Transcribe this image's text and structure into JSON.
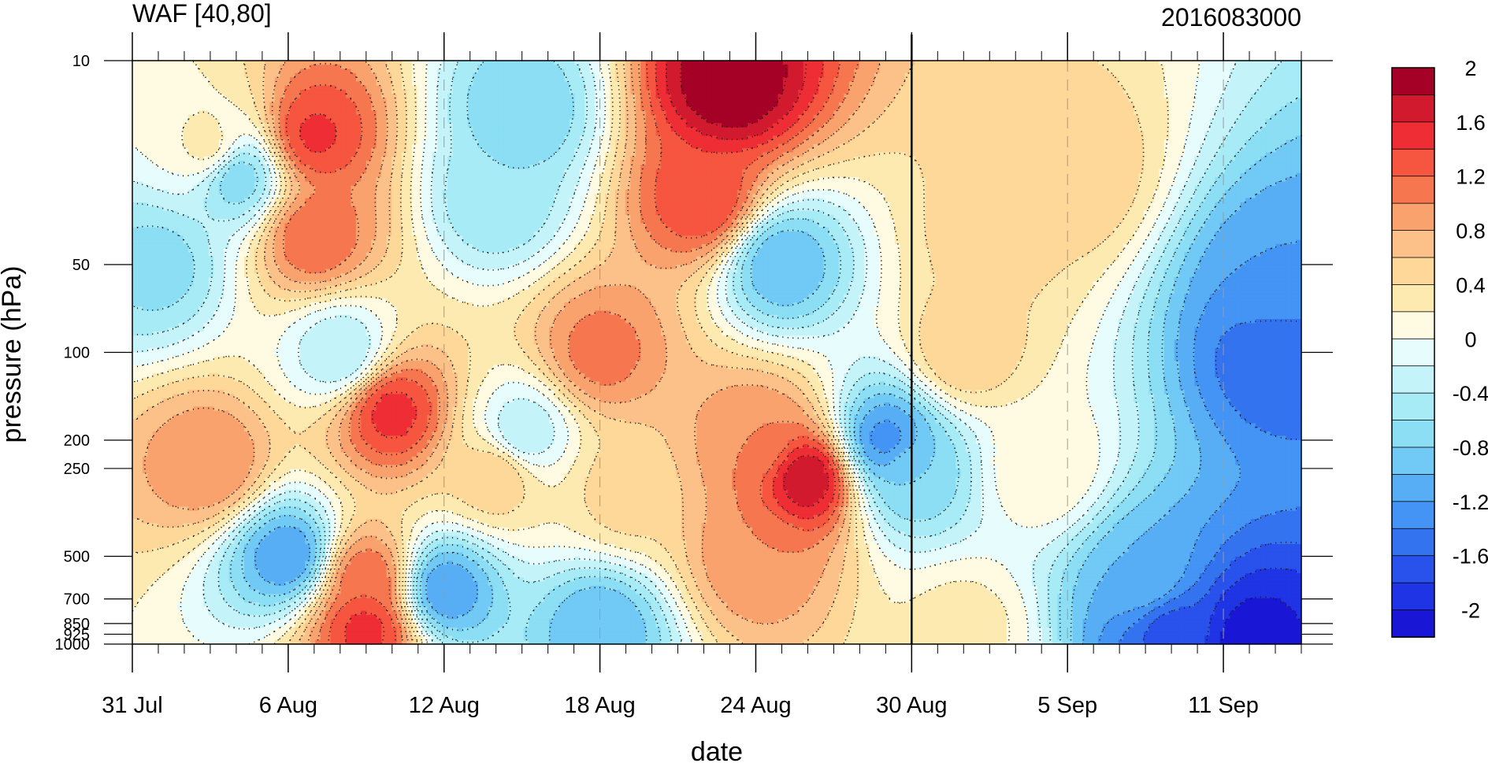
{
  "chart_data": {
    "type": "heatmap",
    "title_left": "WAF [40,80]",
    "title_right": "2016083000",
    "xlabel": "date",
    "ylabel": "pressure (hPa)",
    "x_tick_labels": [
      "31 Jul",
      "6 Aug",
      "12 Aug",
      "18 Aug",
      "24 Aug",
      "30 Aug",
      "5 Sep",
      "11 Sep"
    ],
    "x_tick_dates": [
      "2016-07-31",
      "2016-08-06",
      "2016-08-12",
      "2016-08-18",
      "2016-08-24",
      "2016-08-30",
      "2016-09-05",
      "2016-09-11"
    ],
    "x_range": [
      "2016-07-31",
      "2016-09-14"
    ],
    "dashed_reference_dates": [
      "2016-08-12",
      "2016-08-18",
      "2016-09-05",
      "2016-09-11"
    ],
    "marker_date": "2016-08-30",
    "y_log_scale": true,
    "y_reversed": true,
    "y_range": [
      1000,
      10
    ],
    "y_ticks": [
      10,
      50,
      100,
      200,
      250,
      500,
      700,
      850,
      925,
      1000
    ],
    "y_tick_labels": [
      "10",
      "50",
      "100",
      "200",
      "250",
      "500",
      "700",
      "850",
      "925",
      "1000"
    ],
    "colorbar_levels": [
      -2.2,
      -2.0,
      -1.8,
      -1.6,
      -1.4,
      -1.2,
      -1.0,
      -0.8,
      -0.6,
      -0.4,
      -0.2,
      0,
      0.2,
      0.4,
      0.6,
      0.8,
      1.0,
      1.2,
      1.4,
      1.6,
      1.8,
      2.0
    ],
    "colorbar_tick_labels": [
      "2",
      "1.6",
      "1.2",
      "0.8",
      "0.4",
      "0",
      "-0.4",
      "-0.8",
      "-1.2",
      "-1.6",
      "-2"
    ],
    "colorbar_tick_values": [
      2.0,
      1.6,
      1.2,
      0.8,
      0.4,
      0,
      -0.4,
      -0.8,
      -1.2,
      -1.6,
      -2.0
    ],
    "colorbar_colors": [
      "#a50026",
      "#d21a2e",
      "#ee2d35",
      "#f6553f",
      "#f6774f",
      "#f9a26d",
      "#fbc189",
      "#fdd899",
      "#fdeab1",
      "#fefbe2",
      "#e6fcfd",
      "#c4f4fa",
      "#a7ebf6",
      "#8bdef4",
      "#71c9f5",
      "#58aef5",
      "#4394f4",
      "#3473f0",
      "#2951ec",
      "#1f34e4",
      "#1a16d6"
    ],
    "field_features": [
      {
        "date": "2016-08-07",
        "p": 18,
        "v": 1.45
      },
      {
        "date": "2016-08-07",
        "p": 40,
        "v": 1.2
      },
      {
        "date": "2016-08-03",
        "p": 20,
        "v": 0.3
      },
      {
        "date": "2016-08-04",
        "p": 25,
        "v": -0.8
      },
      {
        "date": "2016-08-01",
        "p": 50,
        "v": -0.7
      },
      {
        "date": "2016-08-03",
        "p": 240,
        "v": 1.0
      },
      {
        "date": "2016-08-06",
        "p": 500,
        "v": -1.2
      },
      {
        "date": "2016-08-08",
        "p": 100,
        "v": -0.4
      },
      {
        "date": "2016-08-10",
        "p": 160,
        "v": 1.5
      },
      {
        "date": "2016-08-09",
        "p": 600,
        "v": 1.2
      },
      {
        "date": "2016-08-09",
        "p": 880,
        "v": 1.5
      },
      {
        "date": "2016-08-12",
        "p": 650,
        "v": -1.2
      },
      {
        "date": "2016-08-15",
        "p": 15,
        "v": -0.8
      },
      {
        "date": "2016-08-14",
        "p": 30,
        "v": -0.6
      },
      {
        "date": "2016-08-15",
        "p": 190,
        "v": -0.4
      },
      {
        "date": "2016-08-14",
        "p": 260,
        "v": 0.6
      },
      {
        "date": "2016-08-18",
        "p": 100,
        "v": 1.1
      },
      {
        "date": "2016-08-19",
        "p": 300,
        "v": 0.5
      },
      {
        "date": "2016-08-18",
        "p": 880,
        "v": -1.0
      },
      {
        "date": "2016-08-23",
        "p": 12,
        "v": 2.0
      },
      {
        "date": "2016-08-22",
        "p": 30,
        "v": 1.4
      },
      {
        "date": "2016-08-25",
        "p": 50,
        "v": -1.0
      },
      {
        "date": "2016-08-24",
        "p": 200,
        "v": 1.0
      },
      {
        "date": "2016-08-26",
        "p": 270,
        "v": 1.8
      },
      {
        "date": "2016-08-24",
        "p": 500,
        "v": 1.0
      },
      {
        "date": "2016-08-29",
        "p": 200,
        "v": -1.3
      },
      {
        "date": "2016-08-30",
        "p": 260,
        "v": -0.8
      },
      {
        "date": "2016-09-02",
        "p": 40,
        "v": 0.5
      },
      {
        "date": "2016-09-05",
        "p": 25,
        "v": 0.6
      },
      {
        "date": "2016-09-01",
        "p": 100,
        "v": 0.6
      },
      {
        "date": "2016-09-04",
        "p": 250,
        "v": 0.2
      },
      {
        "date": "2016-09-01",
        "p": 880,
        "v": 0.3
      },
      {
        "date": "2016-09-13",
        "p": 100,
        "v": -1.6
      },
      {
        "date": "2016-09-13",
        "p": 60,
        "v": -1.2
      },
      {
        "date": "2016-09-12",
        "p": 950,
        "v": -2.1
      },
      {
        "date": "2016-09-09",
        "p": 900,
        "v": -1.7
      },
      {
        "date": "2016-09-08",
        "p": 600,
        "v": -1.0
      }
    ]
  }
}
